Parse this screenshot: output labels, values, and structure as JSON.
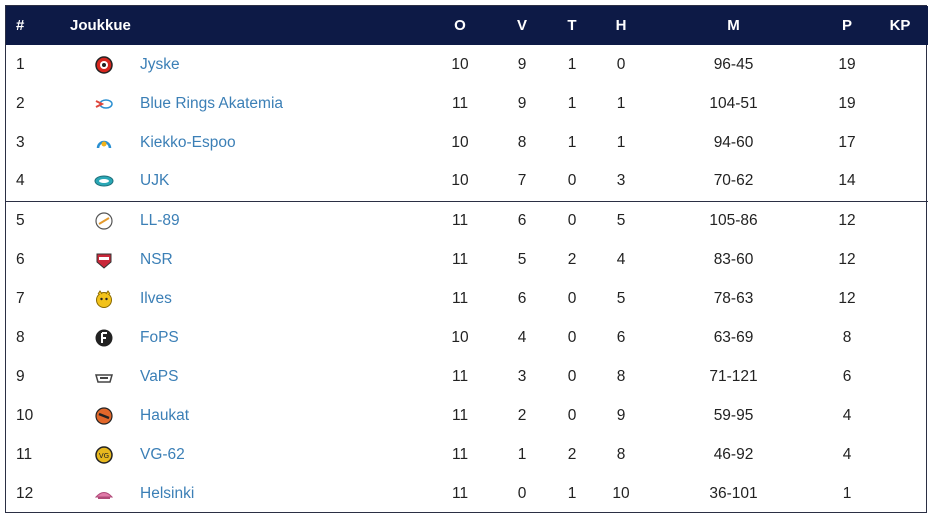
{
  "headers": {
    "pos": "#",
    "team": "Joukkue",
    "o": "O",
    "v": "V",
    "t": "T",
    "h": "H",
    "m": "M",
    "p": "P",
    "kp": "KP"
  },
  "rows": [
    {
      "pos": "1",
      "team": "Jyske",
      "logo_icon": "jyske-logo-icon",
      "color": "#d7261e",
      "o": "10",
      "v": "9",
      "t": "1",
      "h": "0",
      "m": "96-45",
      "p": "19",
      "kp": ""
    },
    {
      "pos": "2",
      "team": "Blue Rings Akatemia",
      "logo_icon": "blue-rings-logo-icon",
      "color": "#e0463c",
      "o": "11",
      "v": "9",
      "t": "1",
      "h": "1",
      "m": "104-51",
      "p": "19",
      "kp": ""
    },
    {
      "pos": "3",
      "team": "Kiekko-Espoo",
      "logo_icon": "kiekko-espoo-logo-icon",
      "color": "#2a8fd1",
      "o": "10",
      "v": "8",
      "t": "1",
      "h": "1",
      "m": "94-60",
      "p": "17",
      "kp": ""
    },
    {
      "pos": "4",
      "team": "UJK",
      "logo_icon": "ujk-logo-icon",
      "color": "#2aa7b5",
      "o": "10",
      "v": "7",
      "t": "0",
      "h": "3",
      "m": "70-62",
      "p": "14",
      "kp": ""
    },
    {
      "pos": "5",
      "team": "LL-89",
      "logo_icon": "ll-89-logo-icon",
      "color": "#e39a2d",
      "o": "11",
      "v": "6",
      "t": "0",
      "h": "5",
      "m": "105-86",
      "p": "12",
      "kp": ""
    },
    {
      "pos": "6",
      "team": "NSR",
      "logo_icon": "nsr-logo-icon",
      "color": "#c9283a",
      "o": "11",
      "v": "5",
      "t": "2",
      "h": "4",
      "m": "83-60",
      "p": "12",
      "kp": ""
    },
    {
      "pos": "7",
      "team": "Ilves",
      "logo_icon": "ilves-logo-icon",
      "color": "#f2c21a",
      "o": "11",
      "v": "6",
      "t": "0",
      "h": "5",
      "m": "78-63",
      "p": "12",
      "kp": ""
    },
    {
      "pos": "8",
      "team": "FoPS",
      "logo_icon": "fops-logo-icon",
      "color": "#222222",
      "o": "10",
      "v": "4",
      "t": "0",
      "h": "6",
      "m": "63-69",
      "p": "8",
      "kp": ""
    },
    {
      "pos": "9",
      "team": "VaPS",
      "logo_icon": "vaps-logo-icon",
      "color": "#444444",
      "o": "11",
      "v": "3",
      "t": "0",
      "h": "8",
      "m": "71-121",
      "p": "6",
      "kp": ""
    },
    {
      "pos": "10",
      "team": "Haukat",
      "logo_icon": "haukat-logo-icon",
      "color": "#e2672a",
      "o": "11",
      "v": "2",
      "t": "0",
      "h": "9",
      "m": "59-95",
      "p": "4",
      "kp": ""
    },
    {
      "pos": "11",
      "team": "VG-62",
      "logo_icon": "vg-62-logo-icon",
      "color": "#e8b81e",
      "o": "11",
      "v": "1",
      "t": "2",
      "h": "8",
      "m": "46-92",
      "p": "4",
      "kp": ""
    },
    {
      "pos": "12",
      "team": "Helsinki",
      "logo_icon": "helsinki-logo-icon",
      "color": "#e07aa8",
      "o": "11",
      "v": "0",
      "t": "1",
      "h": "10",
      "m": "36-101",
      "p": "1",
      "kp": ""
    }
  ],
  "colors": {
    "header_bg": "#0d1a46",
    "link": "#3b7fb6"
  }
}
